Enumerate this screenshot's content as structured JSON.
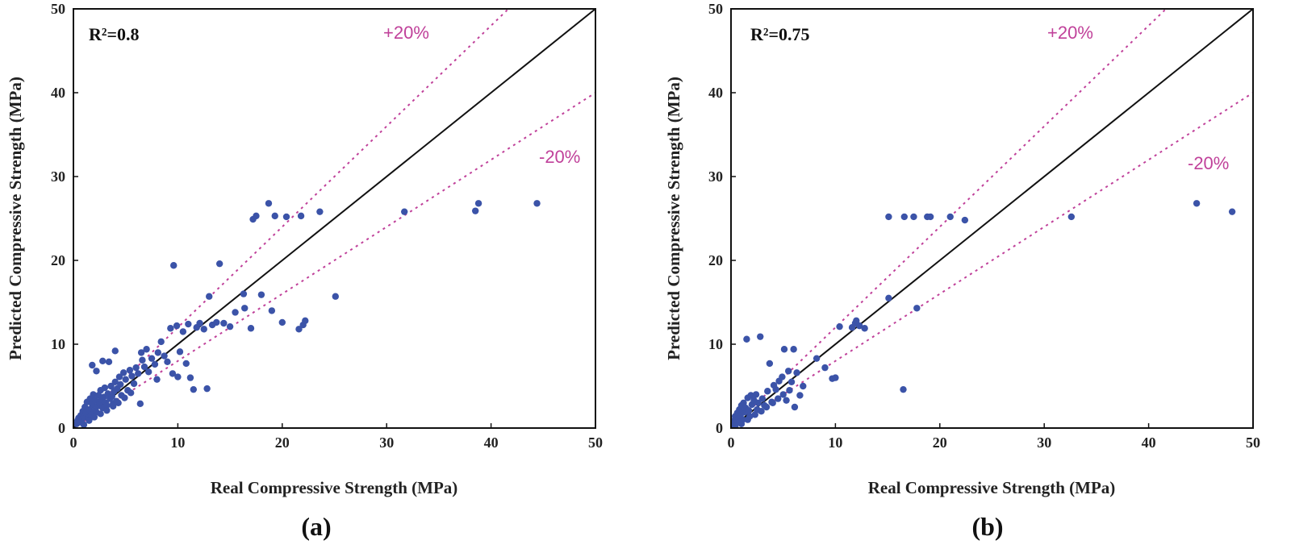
{
  "chart_data": [
    {
      "type": "scatter",
      "panel_label": "(a)",
      "r2_label": "R²=0.8",
      "band_upper_label": "+20%",
      "band_lower_label": "-20%",
      "xlabel": "Real Compressive Strength (MPa)",
      "ylabel": "Predicted Compressive Strength (MPa)",
      "xlim": [
        0,
        50
      ],
      "ylim": [
        0,
        50
      ],
      "xticks": [
        "0",
        "10",
        "20",
        "30",
        "40",
        "50"
      ],
      "yticks": [
        "0",
        "10",
        "20",
        "30",
        "40",
        "50"
      ],
      "lines": {
        "identity": 1.0,
        "upper": 1.2,
        "lower": 0.8
      },
      "points": [
        [
          0.3,
          0.5
        ],
        [
          0.4,
          0.9
        ],
        [
          0.5,
          1.2
        ],
        [
          0.6,
          0.7
        ],
        [
          0.7,
          1.5
        ],
        [
          0.8,
          1.0
        ],
        [
          0.9,
          2.0
        ],
        [
          1.0,
          1.3
        ],
        [
          1.1,
          2.5
        ],
        [
          1.2,
          1.8
        ],
        [
          1.3,
          3.1
        ],
        [
          1.4,
          1.2
        ],
        [
          1.5,
          2.2
        ],
        [
          1.6,
          3.5
        ],
        [
          1.7,
          1.6
        ],
        [
          1.8,
          2.8
        ],
        [
          1.9,
          4.0
        ],
        [
          2.0,
          2.1
        ],
        [
          2.1,
          3.3
        ],
        [
          2.2,
          1.9
        ],
        [
          2.3,
          2.6
        ],
        [
          2.4,
          3.9
        ],
        [
          2.5,
          2.9
        ],
        [
          2.6,
          4.5
        ],
        [
          2.7,
          3.4
        ],
        [
          2.8,
          2.4
        ],
        [
          2.9,
          3.7
        ],
        [
          3.0,
          4.8
        ],
        [
          3.1,
          3.0
        ],
        [
          3.2,
          2.7
        ],
        [
          3.3,
          4.1
        ],
        [
          3.5,
          3.5
        ],
        [
          3.6,
          5.0
        ],
        [
          3.7,
          3.8
        ],
        [
          3.8,
          2.9
        ],
        [
          3.9,
          4.4
        ],
        [
          4.0,
          5.5
        ],
        [
          4.1,
          3.2
        ],
        [
          4.2,
          4.7
        ],
        [
          4.4,
          6.1
        ],
        [
          4.5,
          5.2
        ],
        [
          4.6,
          3.9
        ],
        [
          4.8,
          6.6
        ],
        [
          5.0,
          5.8
        ],
        [
          5.2,
          4.5
        ],
        [
          5.4,
          6.9
        ],
        [
          5.6,
          6.2
        ],
        [
          5.8,
          5.3
        ],
        [
          6.0,
          7.2
        ],
        [
          6.2,
          6.5
        ],
        [
          6.4,
          2.9
        ],
        [
          6.6,
          8.1
        ],
        [
          6.8,
          7.3
        ],
        [
          7.0,
          9.4
        ],
        [
          7.2,
          6.7
        ],
        [
          7.5,
          8.3
        ],
        [
          7.8,
          7.6
        ],
        [
          8.1,
          9.0
        ],
        [
          8.4,
          10.3
        ],
        [
          8.7,
          8.6
        ],
        [
          9.0,
          7.9
        ],
        [
          9.3,
          11.9
        ],
        [
          9.6,
          19.4
        ],
        [
          9.9,
          12.2
        ],
        [
          10.2,
          9.1
        ],
        [
          10.5,
          11.5
        ],
        [
          10.8,
          7.7
        ],
        [
          11.0,
          12.4
        ],
        [
          11.2,
          6.0
        ],
        [
          11.5,
          4.6
        ],
        [
          11.8,
          12.0
        ],
        [
          12.1,
          12.5
        ],
        [
          12.5,
          11.8
        ],
        [
          12.8,
          4.7
        ],
        [
          13.0,
          15.7
        ],
        [
          13.3,
          12.3
        ],
        [
          13.7,
          12.6
        ],
        [
          14.0,
          19.6
        ],
        [
          14.4,
          12.5
        ],
        [
          15.0,
          12.1
        ],
        [
          15.5,
          13.8
        ],
        [
          16.3,
          16.0
        ],
        [
          16.4,
          14.3
        ],
        [
          17.0,
          11.9
        ],
        [
          17.2,
          24.9
        ],
        [
          17.5,
          25.3
        ],
        [
          18.0,
          15.9
        ],
        [
          18.7,
          26.8
        ],
        [
          19.0,
          14.0
        ],
        [
          19.3,
          25.3
        ],
        [
          20.0,
          12.6
        ],
        [
          20.4,
          25.2
        ],
        [
          21.6,
          11.8
        ],
        [
          21.8,
          25.3
        ],
        [
          22.0,
          12.3
        ],
        [
          22.2,
          12.8
        ],
        [
          23.6,
          25.8
        ],
        [
          25.1,
          15.7
        ],
        [
          31.7,
          25.8
        ],
        [
          38.5,
          25.9
        ],
        [
          38.8,
          26.8
        ],
        [
          44.4,
          26.8
        ],
        [
          1.0,
          0.4
        ],
        [
          1.5,
          0.9
        ],
        [
          2.0,
          1.3
        ],
        [
          2.6,
          1.7
        ],
        [
          3.2,
          2.1
        ],
        [
          3.8,
          2.6
        ],
        [
          4.3,
          3.0
        ],
        [
          4.9,
          3.6
        ],
        [
          5.5,
          4.2
        ],
        [
          2.2,
          6.8
        ],
        [
          3.4,
          7.9
        ],
        [
          4.0,
          9.2
        ],
        [
          1.8,
          7.5
        ],
        [
          2.8,
          8.0
        ],
        [
          6.5,
          9.0
        ],
        [
          8.0,
          5.8
        ],
        [
          9.5,
          6.5
        ],
        [
          10.0,
          6.1
        ]
      ]
    },
    {
      "type": "scatter",
      "panel_label": "(b)",
      "r2_label": "R²=0.75",
      "band_upper_label": "+20%",
      "band_lower_label": "-20%",
      "xlabel": "Real Compressive Strength (MPa)",
      "ylabel": "Predicted Compressive Strength (MPa)",
      "xlim": [
        0,
        50
      ],
      "ylim": [
        0,
        50
      ],
      "xticks": [
        "0",
        "10",
        "20",
        "30",
        "40",
        "50"
      ],
      "yticks": [
        "0",
        "10",
        "20",
        "30",
        "40",
        "50"
      ],
      "lines": {
        "identity": 1.0,
        "upper": 1.2,
        "lower": 0.8
      },
      "points": [
        [
          0.2,
          0.4
        ],
        [
          0.3,
          0.9
        ],
        [
          0.4,
          1.4
        ],
        [
          0.5,
          0.6
        ],
        [
          0.6,
          1.8
        ],
        [
          0.7,
          1.1
        ],
        [
          0.8,
          2.2
        ],
        [
          0.9,
          1.5
        ],
        [
          1.0,
          2.7
        ],
        [
          1.1,
          1.0
        ],
        [
          1.2,
          3.0
        ],
        [
          1.3,
          1.9
        ],
        [
          1.4,
          2.4
        ],
        [
          1.5,
          10.6
        ],
        [
          1.6,
          3.6
        ],
        [
          1.7,
          2.1
        ],
        [
          1.9,
          3.9
        ],
        [
          2.0,
          2.8
        ],
        [
          2.2,
          3.3
        ],
        [
          2.4,
          4.0
        ],
        [
          2.6,
          3.0
        ],
        [
          2.8,
          10.9
        ],
        [
          3.0,
          3.5
        ],
        [
          3.2,
          2.7
        ],
        [
          3.5,
          4.4
        ],
        [
          3.7,
          7.7
        ],
        [
          3.9,
          3.1
        ],
        [
          4.1,
          5.1
        ],
        [
          4.3,
          4.6
        ],
        [
          4.6,
          5.6
        ],
        [
          4.9,
          6.1
        ],
        [
          5.1,
          9.4
        ],
        [
          5.3,
          3.3
        ],
        [
          5.5,
          6.8
        ],
        [
          5.8,
          5.5
        ],
        [
          6.0,
          9.4
        ],
        [
          6.1,
          2.5
        ],
        [
          6.3,
          6.6
        ],
        [
          6.6,
          3.9
        ],
        [
          6.9,
          5.0
        ],
        [
          8.2,
          8.3
        ],
        [
          9.0,
          7.2
        ],
        [
          9.7,
          5.9
        ],
        [
          10.0,
          6.0
        ],
        [
          10.4,
          12.1
        ],
        [
          11.6,
          12.0
        ],
        [
          11.9,
          12.5
        ],
        [
          12.3,
          12.2
        ],
        [
          12.8,
          11.9
        ],
        [
          15.1,
          15.5
        ],
        [
          15.1,
          25.2
        ],
        [
          16.5,
          4.6
        ],
        [
          16.6,
          25.2
        ],
        [
          17.5,
          25.2
        ],
        [
          17.8,
          14.3
        ],
        [
          18.8,
          25.2
        ],
        [
          19.1,
          25.2
        ],
        [
          21.0,
          25.2
        ],
        [
          22.4,
          24.8
        ],
        [
          32.6,
          25.2
        ],
        [
          44.6,
          26.8
        ],
        [
          48.0,
          25.8
        ],
        [
          1.0,
          0.5
        ],
        [
          1.6,
          1.0
        ],
        [
          2.3,
          1.6
        ],
        [
          2.9,
          2.0
        ],
        [
          3.4,
          2.5
        ],
        [
          4.0,
          3.0
        ],
        [
          0.4,
          0.2
        ],
        [
          0.8,
          0.7
        ],
        [
          1.8,
          1.4
        ],
        [
          2.5,
          2.2
        ],
        [
          4.5,
          3.5
        ],
        [
          5.0,
          4.0
        ],
        [
          5.6,
          4.5
        ],
        [
          12.0,
          12.8
        ]
      ]
    }
  ]
}
